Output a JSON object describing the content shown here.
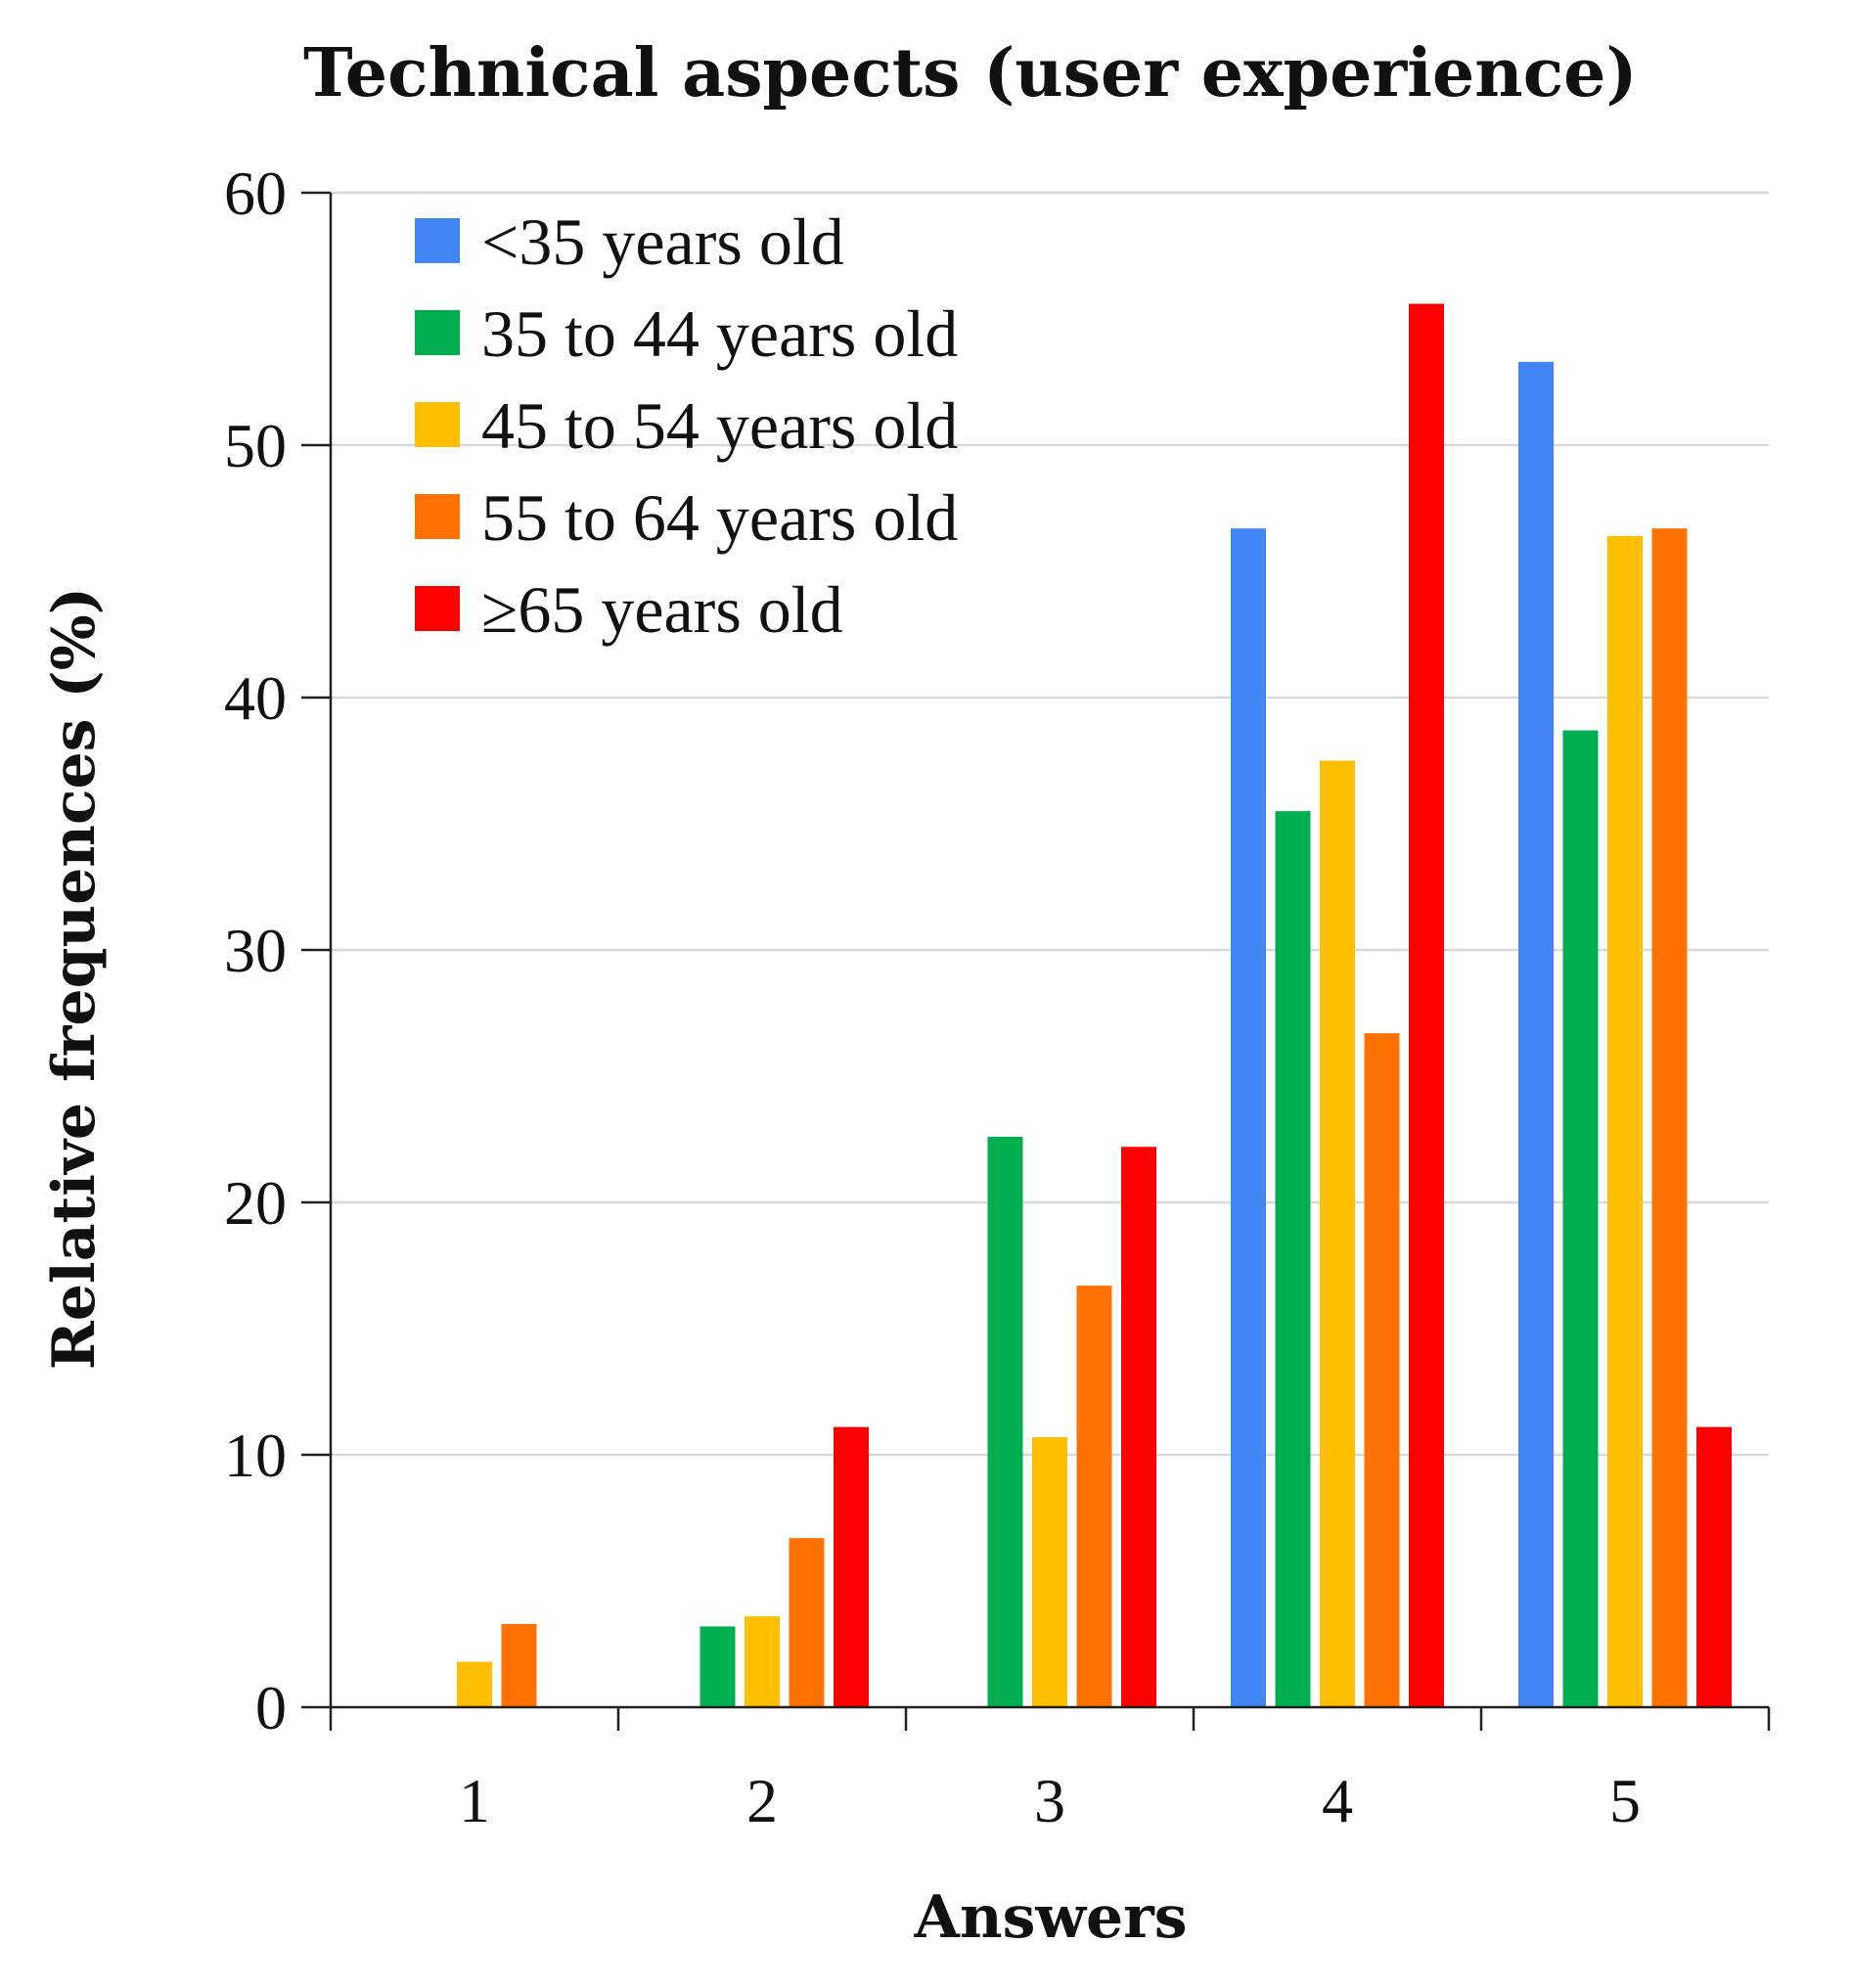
{
  "chart_data": {
    "type": "bar",
    "title": "Technical aspects (user experience)",
    "xlabel": "Answers",
    "ylabel": "Relative frequences (%)",
    "ylim": [
      0,
      60
    ],
    "yticks": [
      0,
      10,
      20,
      30,
      40,
      50,
      60
    ],
    "grid": true,
    "legend_position": "top-left",
    "categories": [
      "1",
      "2",
      "3",
      "4",
      "5"
    ],
    "series": [
      {
        "name": "<35 years old",
        "color": "#4285f4",
        "values": [
          0,
          0,
          0,
          46.7,
          53.3
        ]
      },
      {
        "name": "35 to 44 years old",
        "color": "#00b050",
        "values": [
          0,
          3.2,
          22.6,
          35.5,
          38.7
        ]
      },
      {
        "name": "45 to 54 years old",
        "color": "#ffbf00",
        "values": [
          1.8,
          3.6,
          10.7,
          37.5,
          46.4
        ]
      },
      {
        "name": "55 to 64 years old",
        "color": "#ff7100",
        "values": [
          3.3,
          6.7,
          16.7,
          26.7,
          46.7
        ]
      },
      {
        "name": "≥65 years old",
        "color": "#ff0000",
        "values": [
          0,
          11.1,
          22.2,
          55.6,
          11.1
        ]
      }
    ]
  }
}
